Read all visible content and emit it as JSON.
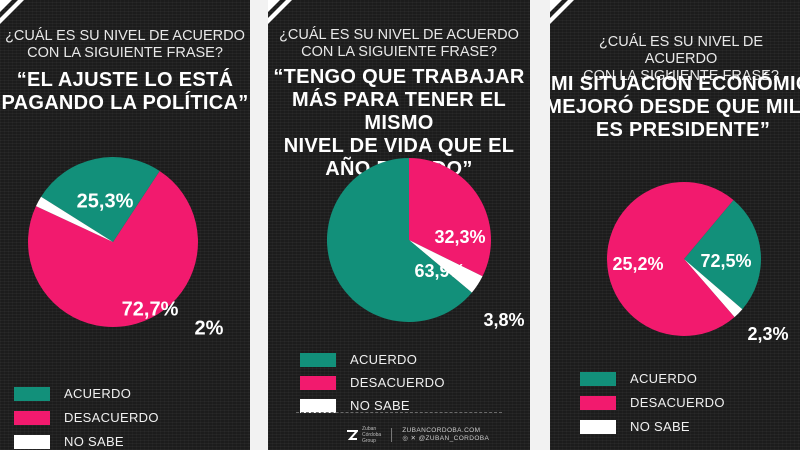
{
  "colors": {
    "acuerdo": "#12907a",
    "desacuerdo": "#f21a6e",
    "no_sabe": "#ffffff"
  },
  "footer": {
    "brand": "Zuban\nCórdoba\nGroup",
    "web": "ZUBANCORDOBA.COM",
    "handle": "@ZUBAN_CORDOBA"
  },
  "chart_data": [
    {
      "type": "pie",
      "question": "¿CUÁL ES SU NIVEL DE ACUERDO\nCON LA SIGUIENTE FRASE?",
      "title": "“EL AJUSTE LO ESTÁ\nPAGANDO LA POLÍTICA”",
      "categories": [
        "ACUERDO",
        "DESACUERDO",
        "NO SABE"
      ],
      "values": [
        25.3,
        72.7,
        2.0
      ],
      "value_labels": [
        "25,3%",
        "72,7%",
        "2%"
      ],
      "legend": [
        "ACUERDO",
        "DESACUERDO",
        "NO SABE"
      ]
    },
    {
      "type": "pie",
      "question": "¿CUÁL ES SU NIVEL DE ACUERDO\nCON LA SIGUIENTE FRASE?",
      "title": "“TENGO QUE TRABAJAR\nMÁS PARA TENER EL MISMO\nNIVEL DE VIDA QUE EL\nAÑO PASADO”",
      "categories": [
        "ACUERDO",
        "DESACUERDO",
        "NO SABE"
      ],
      "values": [
        63.9,
        32.3,
        3.8
      ],
      "value_labels": [
        "63,9%",
        "32,3%",
        "3,8%"
      ],
      "legend": [
        "ACUERDO",
        "DESACUERDO",
        "NO SABE"
      ]
    },
    {
      "type": "pie",
      "question": "¿CUÁL ES SU NIVEL DE ACUERDO\nCON LA SIGUIENTE FRASE?",
      "title": "“MI SITUACIÓN ECONÓMICA\nMEJORÓ DESDE QUE MILEI\nES PRESIDENTE”",
      "categories": [
        "ACUERDO",
        "DESACUERDO",
        "NO SABE"
      ],
      "values": [
        25.2,
        72.5,
        2.3
      ],
      "value_labels": [
        "25,2%",
        "72,5%",
        "2,3%"
      ],
      "legend": [
        "ACUERDO",
        "DESACUERDO",
        "NO SABE"
      ]
    }
  ]
}
